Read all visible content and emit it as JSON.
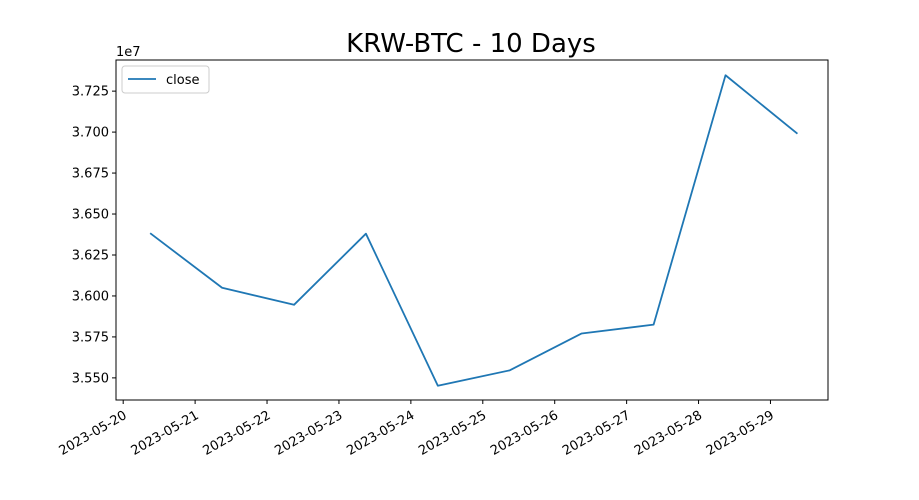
{
  "chart_data": {
    "type": "line",
    "title": "KRW-BTC - 10 Days",
    "xlabel": "",
    "ylabel": "",
    "y_offset_label": "1e7",
    "x_tick_labels": [
      "2023-05-20",
      "2023-05-21",
      "2023-05-22",
      "2023-05-23",
      "2023-05-24",
      "2023-05-25",
      "2023-05-26",
      "2023-05-27",
      "2023-05-28",
      "2023-05-29"
    ],
    "y_tick_values": [
      3.55,
      3.575,
      3.6,
      3.625,
      3.65,
      3.675,
      3.7,
      3.725
    ],
    "y_tick_labels": [
      "3.550",
      "3.575",
      "3.600",
      "3.625",
      "3.650",
      "3.675",
      "3.700",
      "3.725"
    ],
    "xlim": [
      "2023-05-19T21:36:00",
      "2023-05-29T19:12:00"
    ],
    "ylim": [
      3.5365,
      3.744
    ],
    "grid": false,
    "legend_position": "upper-left",
    "series": [
      {
        "name": "close",
        "color": "#1f77b4",
        "x": [
          "2023-05-20T09:00:00",
          "2023-05-21T09:00:00",
          "2023-05-22T09:00:00",
          "2023-05-23T09:00:00",
          "2023-05-24T09:00:00",
          "2023-05-25T09:00:00",
          "2023-05-26T09:00:00",
          "2023-05-27T09:00:00",
          "2023-05-28T09:00:00",
          "2023-05-29T09:00:00"
        ],
        "values": [
          3.6383,
          3.605,
          3.5946,
          3.638,
          3.5452,
          3.5546,
          3.5771,
          3.5825,
          3.7347,
          3.699
        ]
      }
    ]
  }
}
